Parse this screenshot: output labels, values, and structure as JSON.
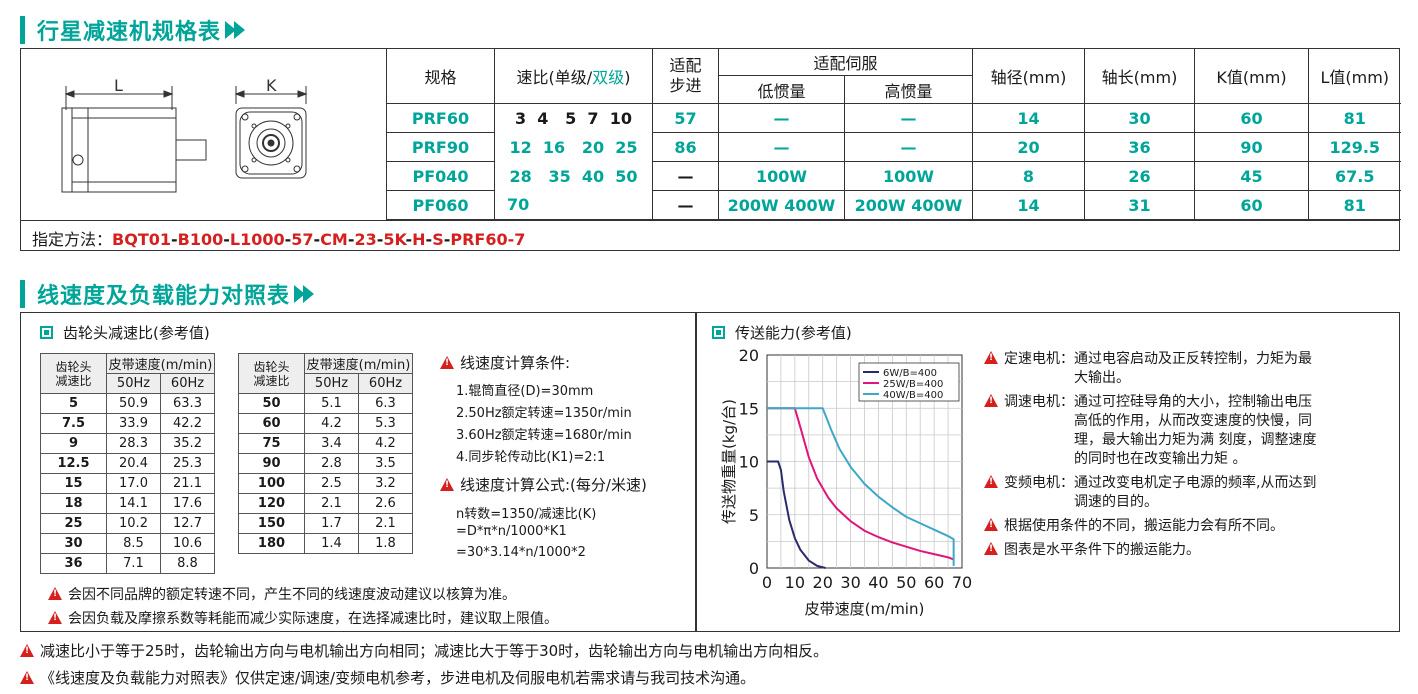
{
  "section1": {
    "title": "行星减速机规格表"
  },
  "drawing": {
    "dim_l": "L",
    "dim_k": "K"
  },
  "spec_table": {
    "headers": {
      "model": "规格",
      "ratio_prefix": "速比(单级/",
      "ratio_double": "双级",
      "ratio_suffix": ")",
      "stepper_line1": "适配",
      "stepper_line2": "步进",
      "servo": "适配伺服",
      "low_inertia": "低惯量",
      "high_inertia": "高惯量",
      "shaft_dia": "轴径(mm)",
      "shaft_len": "轴长(mm)",
      "k_value": "K值(mm)",
      "l_value": "L值(mm)"
    },
    "rows": [
      {
        "model": "PRF60",
        "ratios": "3  4   5  7  10",
        "stepper": "57",
        "low": "—",
        "high": "—",
        "shaft_dia": "14",
        "shaft_len": "30",
        "k": "60",
        "l": "81"
      },
      {
        "model": "PRF90",
        "ratios": "12  16   20  25",
        "stepper": "86",
        "low": "—",
        "high": "—",
        "shaft_dia": "20",
        "shaft_len": "36",
        "k": "90",
        "l": "129.5"
      },
      {
        "model": "PF040",
        "ratios": "28   35  40  50",
        "stepper": "—",
        "low": "100W",
        "high": "100W",
        "shaft_dia": "8",
        "shaft_len": "26",
        "k": "45",
        "l": "67.5"
      },
      {
        "model": "PF060",
        "ratios": "70",
        "stepper": "—",
        "low": "200W 400W",
        "high": "200W 400W",
        "shaft_dia": "14",
        "shaft_len": "31",
        "k": "60",
        "l": "81"
      }
    ],
    "code_label": "指定方法：",
    "code_parts": [
      "BQT01",
      "B100",
      "L1000",
      "57",
      "CM",
      "23",
      "5K",
      "H",
      "S",
      "PRF60-7"
    ],
    "code_sep": "-"
  },
  "section2": {
    "title": "线速度及负载能力对照表"
  },
  "gear": {
    "title": "齿轮头减速比(参考值)",
    "col_ratio_line1": "齿轮头",
    "col_ratio_line2": "减速比",
    "col_speed": "皮带速度(m/min)",
    "col_50": "50Hz",
    "col_60": "60Hz",
    "left_rows": [
      [
        "5",
        "50.9",
        "63.3"
      ],
      [
        "7.5",
        "33.9",
        "42.2"
      ],
      [
        "9",
        "28.3",
        "35.2"
      ],
      [
        "12.5",
        "20.4",
        "25.3"
      ],
      [
        "15",
        "17.0",
        "21.1"
      ],
      [
        "18",
        "14.1",
        "17.6"
      ],
      [
        "25",
        "10.2",
        "12.7"
      ],
      [
        "30",
        "8.5",
        "10.6"
      ],
      [
        "36",
        "7.1",
        "8.8"
      ]
    ],
    "right_rows": [
      [
        "50",
        "5.1",
        "6.3"
      ],
      [
        "60",
        "4.2",
        "5.3"
      ],
      [
        "75",
        "3.4",
        "4.2"
      ],
      [
        "90",
        "2.8",
        "3.5"
      ],
      [
        "100",
        "2.5",
        "3.2"
      ],
      [
        "120",
        "2.1",
        "2.6"
      ],
      [
        "150",
        "1.7",
        "2.1"
      ],
      [
        "180",
        "1.4",
        "1.8"
      ]
    ],
    "cond_title": "线速度计算条件:",
    "cond_lines": [
      "1.辊筒直径(D)=30mm",
      "2.50Hz额定转速=1350r/min",
      "3.60Hz额定转速=1680r/min",
      "4.同步轮传动比(K1)=2:1"
    ],
    "formula_title": "线速度计算公式:(每分/米速)",
    "formula_lines": [
      "n转数=1350/减速比(K)",
      "=D*π*n/1000*K1",
      "=30*3.14*n/1000*2"
    ],
    "notes": [
      "会因不同品牌的额定转速不同，产生不同的线速度波动建议以核算为准。",
      "会因负载及摩擦系数等耗能而减少实际速度，在选择减速比时，建议取上限值。"
    ]
  },
  "capacity": {
    "title": "传送能力(参考值)",
    "notes": [
      {
        "label": "定速电机：",
        "text": [
          "通过电容启动及正反转控制，力矩为最",
          "大输出。"
        ]
      },
      {
        "label": "调速电机：",
        "text": [
          "通过可控硅导角的大小，控制输出电压",
          "高低的作用，从而改变速度的快慢，同",
          "理，最大输出力矩为满 刻度，调整速度",
          "的同时也在改变输出力矩 。"
        ]
      },
      {
        "label": "变频电机：",
        "text": [
          "通过改变电机定子电源的频率,从而达到",
          "调速的目的。"
        ]
      },
      {
        "label": "",
        "text": [
          "根据使用条件的不同，搬运能力会有所不同。"
        ]
      },
      {
        "label": "",
        "text": [
          "图表是水平条件下的搬运能力。"
        ]
      }
    ]
  },
  "chart_data": {
    "type": "line",
    "xlabel": "皮带速度(m/min)",
    "ylabel": "传送物重量(kg/台)",
    "xlim": [
      0,
      70
    ],
    "ylim": [
      0,
      20
    ],
    "xticks": [
      0,
      10,
      20,
      30,
      40,
      50,
      60,
      70
    ],
    "yticks": [
      0,
      5,
      10,
      15,
      20
    ],
    "grid": true,
    "legend_position": "top-right",
    "series": [
      {
        "name": "6W/B=400",
        "color": "#2a2a6e",
        "x": [
          0,
          4,
          5,
          6,
          8,
          10,
          12,
          15,
          18,
          21
        ],
        "y": [
          10,
          10,
          9.2,
          7.2,
          4.5,
          2.8,
          1.7,
          0.7,
          0.2,
          0
        ]
      },
      {
        "name": "25W/B=400",
        "color": "#e0147a",
        "x": [
          0,
          10,
          12,
          15,
          18,
          22,
          25,
          30,
          35,
          40,
          45,
          50,
          55,
          60,
          65,
          67
        ],
        "y": [
          15,
          15,
          13.2,
          10.4,
          8.4,
          6.6,
          5.6,
          4.4,
          3.5,
          2.9,
          2.4,
          2.0,
          1.6,
          1.3,
          1.0,
          0.8
        ]
      },
      {
        "name": "40W/B=400",
        "color": "#3fa8c8",
        "x": [
          0,
          20,
          23,
          26,
          30,
          35,
          40,
          45,
          50,
          55,
          60,
          65,
          67,
          67
        ],
        "y": [
          15,
          15,
          13,
          11.2,
          9.5,
          7.9,
          6.7,
          5.7,
          4.8,
          4.2,
          3.6,
          3.0,
          2.7,
          0.2
        ]
      }
    ]
  },
  "footer": {
    "notes": [
      "减速比小于等于25时，齿轮输出方向与电机输出方向相同；减速比大于等于30时，齿轮输出方向与电机输出方向相反。",
      "《线速度及负载能力对照表》仅供定速/调速/变频电机参考，步进电机及伺服电机若需求请与我司技术沟通。"
    ]
  }
}
